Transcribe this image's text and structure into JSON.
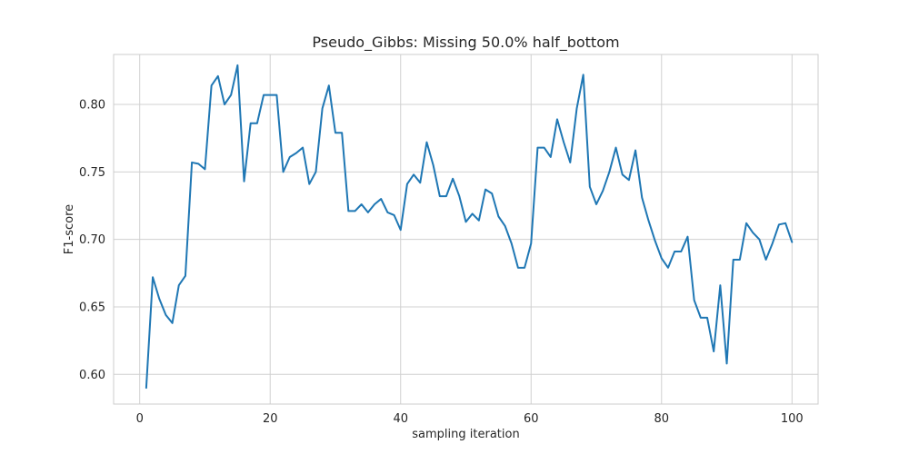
{
  "chart_data": {
    "type": "line",
    "title": "Pseudo_Gibbs: Missing 50.0% half_bottom",
    "xlabel": "sampling iteration",
    "ylabel": "F1-score",
    "xlim": [
      -4,
      104
    ],
    "ylim": [
      0.578,
      0.837
    ],
    "xticks": [
      0,
      20,
      40,
      60,
      80,
      100
    ],
    "yticks": [
      0.6,
      0.65,
      0.7,
      0.75,
      0.8
    ],
    "xtick_labels": [
      "0",
      "20",
      "40",
      "60",
      "80",
      "100"
    ],
    "ytick_labels": [
      "0.60",
      "0.65",
      "0.70",
      "0.75",
      "0.80"
    ],
    "grid": true,
    "legend": false,
    "series": [
      {
        "color": "#1f77b4",
        "x": [
          1,
          2,
          3,
          4,
          5,
          6,
          7,
          8,
          9,
          10,
          11,
          12,
          13,
          14,
          15,
          16,
          17,
          18,
          19,
          20,
          21,
          22,
          23,
          24,
          25,
          26,
          27,
          28,
          29,
          30,
          31,
          32,
          33,
          34,
          35,
          36,
          37,
          38,
          39,
          40,
          41,
          42,
          43,
          44,
          45,
          46,
          47,
          48,
          49,
          50,
          51,
          52,
          53,
          54,
          55,
          56,
          57,
          58,
          59,
          60,
          61,
          62,
          63,
          64,
          65,
          66,
          67,
          68,
          69,
          70,
          71,
          72,
          73,
          74,
          75,
          76,
          77,
          78,
          79,
          80,
          81,
          82,
          83,
          84,
          85,
          86,
          87,
          88,
          89,
          90,
          91,
          92,
          93,
          94,
          95,
          96,
          97,
          98,
          99,
          100
        ],
        "y": [
          0.59,
          0.672,
          0.656,
          0.644,
          0.638,
          0.666,
          0.673,
          0.757,
          0.756,
          0.752,
          0.814,
          0.821,
          0.8,
          0.807,
          0.829,
          0.743,
          0.786,
          0.786,
          0.807,
          0.807,
          0.807,
          0.75,
          0.761,
          0.764,
          0.768,
          0.741,
          0.75,
          0.797,
          0.814,
          0.779,
          0.779,
          0.721,
          0.721,
          0.726,
          0.72,
          0.726,
          0.73,
          0.72,
          0.718,
          0.707,
          0.741,
          0.748,
          0.742,
          0.772,
          0.755,
          0.732,
          0.732,
          0.745,
          0.732,
          0.713,
          0.719,
          0.714,
          0.737,
          0.734,
          0.717,
          0.71,
          0.697,
          0.679,
          0.679,
          0.697,
          0.768,
          0.768,
          0.761,
          0.789,
          0.772,
          0.757,
          0.797,
          0.822,
          0.739,
          0.726,
          0.736,
          0.75,
          0.768,
          0.748,
          0.744,
          0.766,
          0.731,
          0.714,
          0.699,
          0.686,
          0.679,
          0.691,
          0.691,
          0.702,
          0.655,
          0.642,
          0.642,
          0.617,
          0.666,
          0.608,
          0.685,
          0.685,
          0.712,
          0.705,
          0.7,
          0.685,
          0.697,
          0.711,
          0.712,
          0.698
        ]
      }
    ]
  }
}
